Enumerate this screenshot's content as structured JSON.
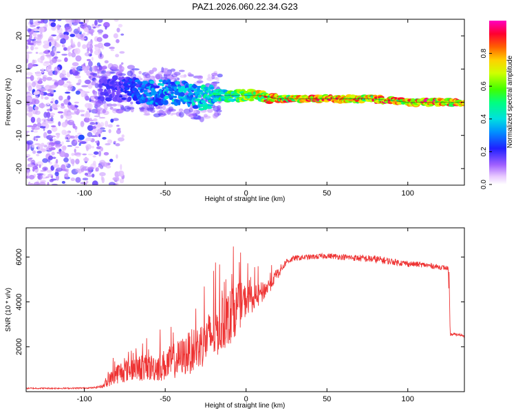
{
  "title": "PAZ1.2026.060.22.34.G23",
  "chart_data": [
    {
      "type": "heatmap",
      "title": "PAZ1.2026.060.22.34.G23",
      "xlabel": "Height of straight line (km)",
      "ylabel": "Frequency (Hz)",
      "xlim": [
        -136,
        135
      ],
      "ylim": [
        -25,
        25
      ],
      "xticks": [
        -100,
        -50,
        0,
        50,
        100
      ],
      "yticks": [
        -20,
        -10,
        0,
        10,
        20
      ],
      "colorbar": {
        "label": "Normalized spectral amplitude",
        "range": [
          0,
          1
        ],
        "ticks": [
          0.0,
          0.2,
          0.4,
          0.6,
          0.8
        ]
      },
      "ridge": {
        "description_free_fields_only": true,
        "x": [
          -80,
          -70,
          -60,
          -50,
          -40,
          -30,
          -20,
          -10,
          0,
          10,
          20,
          40,
          60,
          80,
          100,
          120,
          135
        ],
        "frequency": [
          4,
          3.5,
          3,
          3,
          3,
          1,
          2,
          2,
          2,
          2,
          1,
          1,
          1,
          1,
          0,
          0,
          0
        ],
        "amplitude": [
          0.2,
          0.3,
          0.35,
          0.4,
          0.4,
          0.45,
          0.5,
          0.6,
          0.7,
          0.85,
          0.9,
          0.95,
          0.95,
          0.9,
          0.92,
          0.95,
          0.9
        ]
      }
    },
    {
      "type": "line",
      "xlabel": "Height of straight line (km)",
      "ylabel": "SNR (10 * v/v)",
      "xlim": [
        -136,
        135
      ],
      "ylim": [
        0,
        7300
      ],
      "xticks": [
        -100,
        -50,
        0,
        50,
        100
      ],
      "yticks": [
        2000,
        4000,
        6000
      ],
      "color": "#ee3333",
      "series": [
        {
          "name": "SNR",
          "x": [
            -136,
            -110,
            -95,
            -88,
            -80,
            -70,
            -60,
            -50,
            -40,
            -30,
            -20,
            -10,
            -5,
            0,
            5,
            10,
            15,
            20,
            25,
            30,
            40,
            50,
            60,
            70,
            80,
            90,
            100,
            110,
            120,
            125,
            126,
            130,
            135
          ],
          "mean": [
            150,
            150,
            170,
            250,
            700,
            900,
            900,
            1000,
            1300,
            1700,
            2300,
            3000,
            3500,
            3900,
            4000,
            4300,
            4700,
            5300,
            5800,
            5950,
            6000,
            6050,
            6000,
            5950,
            5900,
            5800,
            5700,
            5650,
            5550,
            5500,
            2550,
            2550,
            2500
          ],
          "noise": [
            60,
            60,
            60,
            150,
            600,
            700,
            750,
            900,
            1100,
            1300,
            1500,
            1500,
            1400,
            900,
            700,
            600,
            400,
            250,
            150,
            120,
            120,
            120,
            130,
            150,
            180,
            150,
            130,
            120,
            110,
            100,
            70,
            60,
            60
          ]
        }
      ]
    }
  ]
}
